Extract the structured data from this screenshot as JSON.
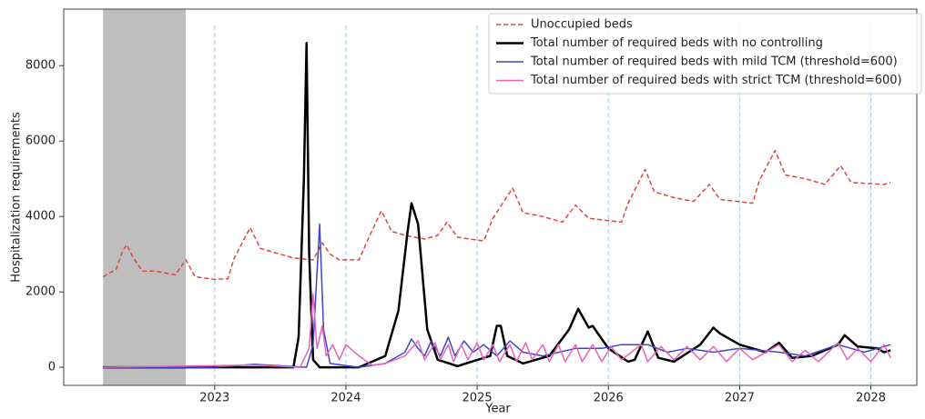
{
  "chart_data": {
    "type": "line",
    "xlabel": "Year",
    "ylabel": "Hospitalization requirements",
    "xlim": [
      2021.85,
      2028.35
    ],
    "xticks": [
      2023,
      2024,
      2025,
      2026,
      2027,
      2028
    ],
    "ylim": [
      -480,
      9500
    ],
    "yticks": [
      0,
      2000,
      4000,
      6000,
      8000
    ],
    "grid": "x",
    "legend": "upper right",
    "shaded_span": [
      2022.15,
      2022.78
    ],
    "shade_color": "#bebebe",
    "series": [
      {
        "name": "Unoccupied beds",
        "color": "#e0453f",
        "style": "dashed",
        "x": [
          2022.15,
          2022.25,
          2022.3,
          2022.33,
          2022.38,
          2022.45,
          2022.55,
          2022.7,
          2022.78,
          2022.85,
          2023.0,
          2023.1,
          2023.15,
          2023.27,
          2023.35,
          2023.45,
          2023.6,
          2023.75,
          2023.82,
          2023.88,
          2023.95,
          2024.1,
          2024.17,
          2024.27,
          2024.35,
          2024.45,
          2024.6,
          2024.7,
          2024.77,
          2024.85,
          2025.05,
          2025.12,
          2025.27,
          2025.35,
          2025.5,
          2025.65,
          2025.75,
          2025.85,
          2026.1,
          2026.15,
          2026.28,
          2026.35,
          2026.5,
          2026.65,
          2026.77,
          2026.85,
          2027.1,
          2027.15,
          2027.27,
          2027.35,
          2027.5,
          2027.65,
          2027.77,
          2027.85,
          2028.1,
          2028.15
        ],
        "values": [
          2400,
          2600,
          3100,
          3250,
          2900,
          2550,
          2550,
          2450,
          2850,
          2400,
          2330,
          2350,
          2900,
          3700,
          3150,
          3050,
          2900,
          2850,
          3300,
          3000,
          2850,
          2850,
          3400,
          4150,
          3600,
          3500,
          3400,
          3500,
          3850,
          3450,
          3350,
          3950,
          4750,
          4100,
          4000,
          3850,
          4300,
          3950,
          3850,
          4350,
          5250,
          4650,
          4500,
          4400,
          4850,
          4450,
          4350,
          4950,
          5750,
          5100,
          5000,
          4850,
          5350,
          4900,
          4850,
          4900
        ]
      },
      {
        "name": "Total number of required beds with no controlling",
        "color": "#000000",
        "style": "thick",
        "x": [
          2022.15,
          2023.6,
          2023.64,
          2023.68,
          2023.7,
          2023.72,
          2023.75,
          2023.8,
          2024.1,
          2024.3,
          2024.4,
          2024.47,
          2024.5,
          2024.55,
          2024.62,
          2024.7,
          2024.85,
          2025.1,
          2025.15,
          2025.18,
          2025.23,
          2025.35,
          2025.55,
          2025.7,
          2025.77,
          2025.85,
          2025.88,
          2026.0,
          2026.15,
          2026.2,
          2026.3,
          2026.38,
          2026.5,
          2026.7,
          2026.8,
          2026.85,
          2027.0,
          2027.2,
          2027.3,
          2027.4,
          2027.55,
          2027.75,
          2027.8,
          2027.9,
          2028.05,
          2028.1,
          2028.15
        ],
        "values": [
          0,
          0,
          800,
          5000,
          8600,
          3000,
          200,
          0,
          0,
          300,
          1500,
          3600,
          4350,
          3800,
          1000,
          200,
          30,
          300,
          1100,
          1100,
          300,
          100,
          300,
          1000,
          1550,
          1050,
          1100,
          500,
          150,
          200,
          950,
          250,
          150,
          600,
          1050,
          900,
          600,
          400,
          650,
          250,
          300,
          600,
          850,
          550,
          500,
          400,
          450
        ]
      },
      {
        "name": "Total number of required beds with mild TCM (threshold=600)",
        "color": "#3f44d0",
        "style": "solid",
        "x": [
          2022.15,
          2023.0,
          2023.3,
          2023.7,
          2023.75,
          2023.8,
          2023.83,
          2023.88,
          2024.1,
          2024.3,
          2024.45,
          2024.5,
          2024.55,
          2024.6,
          2024.65,
          2024.72,
          2024.78,
          2024.83,
          2024.9,
          2024.97,
          2025.05,
          2025.15,
          2025.25,
          2025.35,
          2025.5,
          2025.75,
          2025.95,
          2026.1,
          2026.3,
          2026.45,
          2026.6,
          2026.8,
          2027.0,
          2027.3,
          2027.5,
          2027.75,
          2027.95,
          2028.15
        ],
        "values": [
          0,
          0,
          80,
          0,
          600,
          3800,
          1000,
          100,
          0,
          100,
          400,
          750,
          500,
          300,
          700,
          300,
          800,
          300,
          700,
          400,
          600,
          300,
          700,
          400,
          300,
          500,
          500,
          600,
          600,
          400,
          500,
          400,
          500,
          400,
          300,
          600,
          400,
          600
        ]
      },
      {
        "name": "Total number of required beds with strict TCM (threshold=600)",
        "color": "#e763b8",
        "style": "solid",
        "x": [
          2022.15,
          2023.3,
          2023.65,
          2023.72,
          2023.75,
          2023.78,
          2023.82,
          2023.85,
          2023.9,
          2023.95,
          2024.0,
          2024.1,
          2024.2,
          2024.3,
          2024.45,
          2024.55,
          2024.6,
          2024.68,
          2024.72,
          2024.78,
          2024.82,
          2024.88,
          2024.93,
          2025.0,
          2025.05,
          2025.12,
          2025.17,
          2025.25,
          2025.3,
          2025.37,
          2025.42,
          2025.5,
          2025.55,
          2025.62,
          2025.67,
          2025.75,
          2025.8,
          2025.88,
          2025.95,
          2026.02,
          2026.1,
          2026.25,
          2026.3,
          2026.4,
          2026.5,
          2026.6,
          2026.7,
          2026.8,
          2026.9,
          2027.0,
          2027.1,
          2027.3,
          2027.4,
          2027.5,
          2027.6,
          2027.75,
          2027.82,
          2027.9,
          2028.0,
          2028.1,
          2028.15
        ],
        "values": [
          0,
          60,
          0,
          500,
          1950,
          500,
          1100,
          300,
          600,
          200,
          600,
          300,
          50,
          100,
          300,
          700,
          200,
          650,
          200,
          600,
          150,
          600,
          200,
          650,
          200,
          600,
          150,
          600,
          150,
          650,
          200,
          600,
          150,
          600,
          150,
          600,
          150,
          600,
          150,
          550,
          200,
          600,
          150,
          550,
          200,
          550,
          200,
          550,
          150,
          500,
          200,
          600,
          150,
          450,
          150,
          650,
          200,
          500,
          150,
          600,
          250
        ]
      }
    ]
  }
}
